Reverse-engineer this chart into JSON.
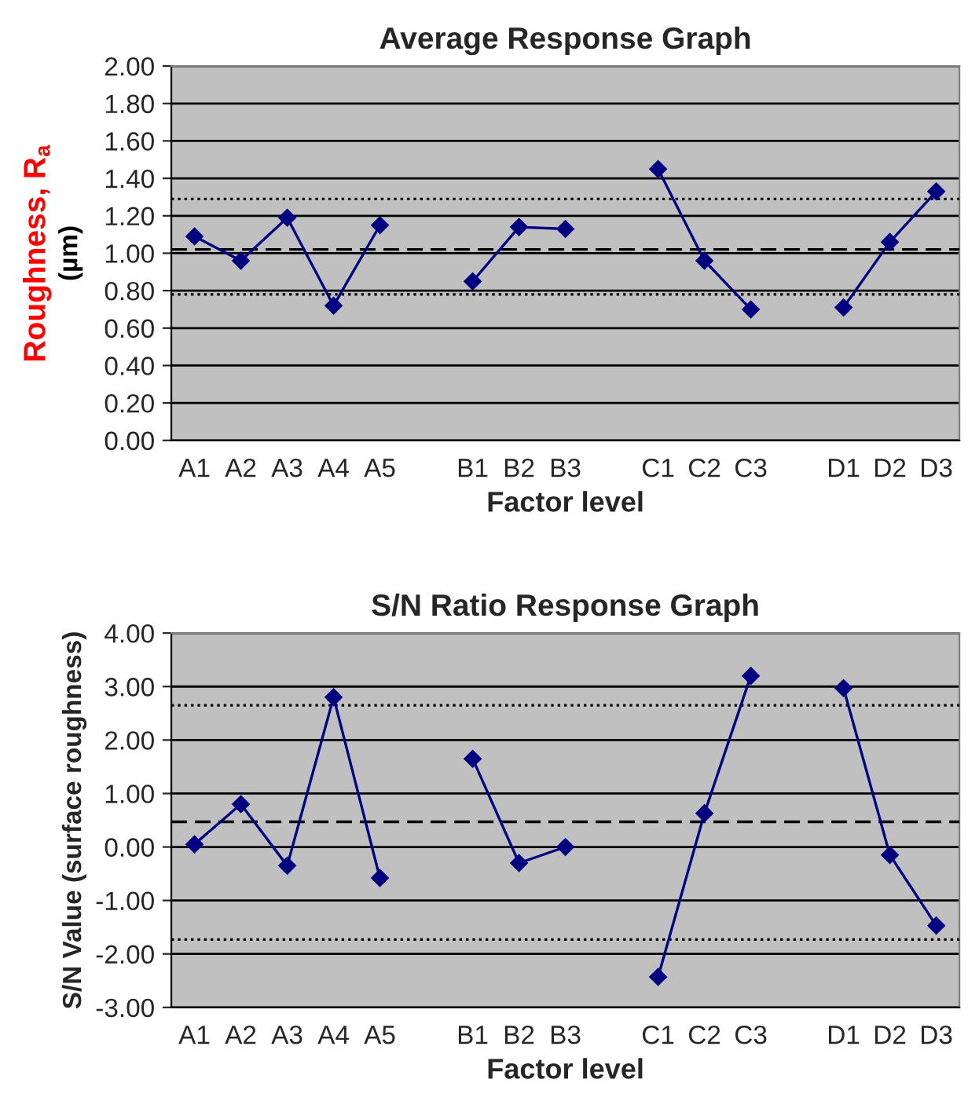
{
  "chart_data": [
    {
      "type": "line",
      "title": "Average Response Graph",
      "xlabel": "Factor level",
      "ylabel": "Roughness, R$_{a}$\n(µm)",
      "categories": [
        "A1",
        "A2",
        "A3",
        "A4",
        "A5",
        null,
        "B1",
        "B2",
        "B3",
        null,
        "C1",
        "C2",
        "C3",
        null,
        "D1",
        "D2",
        "D3"
      ],
      "series": [
        {
          "color": "#000080",
          "values": [
            1.09,
            0.96,
            1.19,
            0.72,
            1.15,
            null,
            0.85,
            1.14,
            1.13,
            null,
            1.45,
            0.96,
            0.7,
            null,
            0.71,
            1.06,
            1.33
          ]
        }
      ],
      "ylim": [
        0,
        2
      ],
      "yticks": [
        {
          "value": 0,
          "label": "0.00"
        },
        {
          "value": 0.2,
          "label": "0.20"
        },
        {
          "value": 0.4,
          "label": "0.40"
        },
        {
          "value": 0.6,
          "label": "0.60"
        },
        {
          "value": 0.8,
          "label": "0.80"
        },
        {
          "value": 1.0,
          "label": "1.00"
        },
        {
          "value": 1.2,
          "label": "1.20"
        },
        {
          "value": 1.4,
          "label": "1.40"
        },
        {
          "value": 1.6,
          "label": "1.60"
        },
        {
          "value": 1.8,
          "label": "1.80"
        },
        {
          "value": 2.0,
          "label": "2.00"
        }
      ],
      "grid": "y",
      "marker": "diamond",
      "line_style": "solid",
      "legend": false,
      "ref_lines": [
        {
          "axis": "y",
          "value": 1.02,
          "line_style": "dashed",
          "color": "#000000"
        },
        {
          "axis": "y",
          "value": 1.29,
          "line_style": "dotted",
          "color": "#000000"
        },
        {
          "axis": "y",
          "value": 0.78,
          "line_style": "dotted",
          "color": "#000000"
        }
      ]
    },
    {
      "type": "line",
      "title": "S/N Ratio Response Graph",
      "xlabel": "Factor level",
      "ylabel": "S/N Value (surface roughness)",
      "categories": [
        "A1",
        "A2",
        "A3",
        "A4",
        "A5",
        null,
        "B1",
        "B2",
        "B3",
        null,
        "C1",
        "C2",
        "C3",
        null,
        "D1",
        "D2",
        "D3"
      ],
      "series": [
        {
          "color": "#000080",
          "values": [
            0.05,
            0.8,
            -0.35,
            2.8,
            -0.58,
            null,
            1.65,
            -0.3,
            0.0,
            null,
            -2.43,
            0.63,
            3.2,
            null,
            2.97,
            -0.15,
            -1.47
          ]
        }
      ],
      "ylim": [
        -3,
        4
      ],
      "yticks": [
        {
          "value": -3,
          "label": "-3.00"
        },
        {
          "value": -2,
          "label": "-2.00"
        },
        {
          "value": -1,
          "label": "-1.00"
        },
        {
          "value": 0,
          "label": "0.00"
        },
        {
          "value": 1,
          "label": "1.00"
        },
        {
          "value": 2,
          "label": "2.00"
        },
        {
          "value": 3,
          "label": "3.00"
        },
        {
          "value": 4,
          "label": "4.00"
        }
      ],
      "grid": "y",
      "marker": "diamond",
      "line_style": "solid",
      "legend": false,
      "ref_lines": [
        {
          "axis": "y",
          "value": 0.47,
          "line_style": "dashed",
          "color": "#000000"
        },
        {
          "axis": "y",
          "value": 2.65,
          "line_style": "dotted",
          "color": "#000000"
        },
        {
          "axis": "y",
          "value": -1.73,
          "line_style": "dotted",
          "color": "#000000"
        }
      ]
    }
  ]
}
